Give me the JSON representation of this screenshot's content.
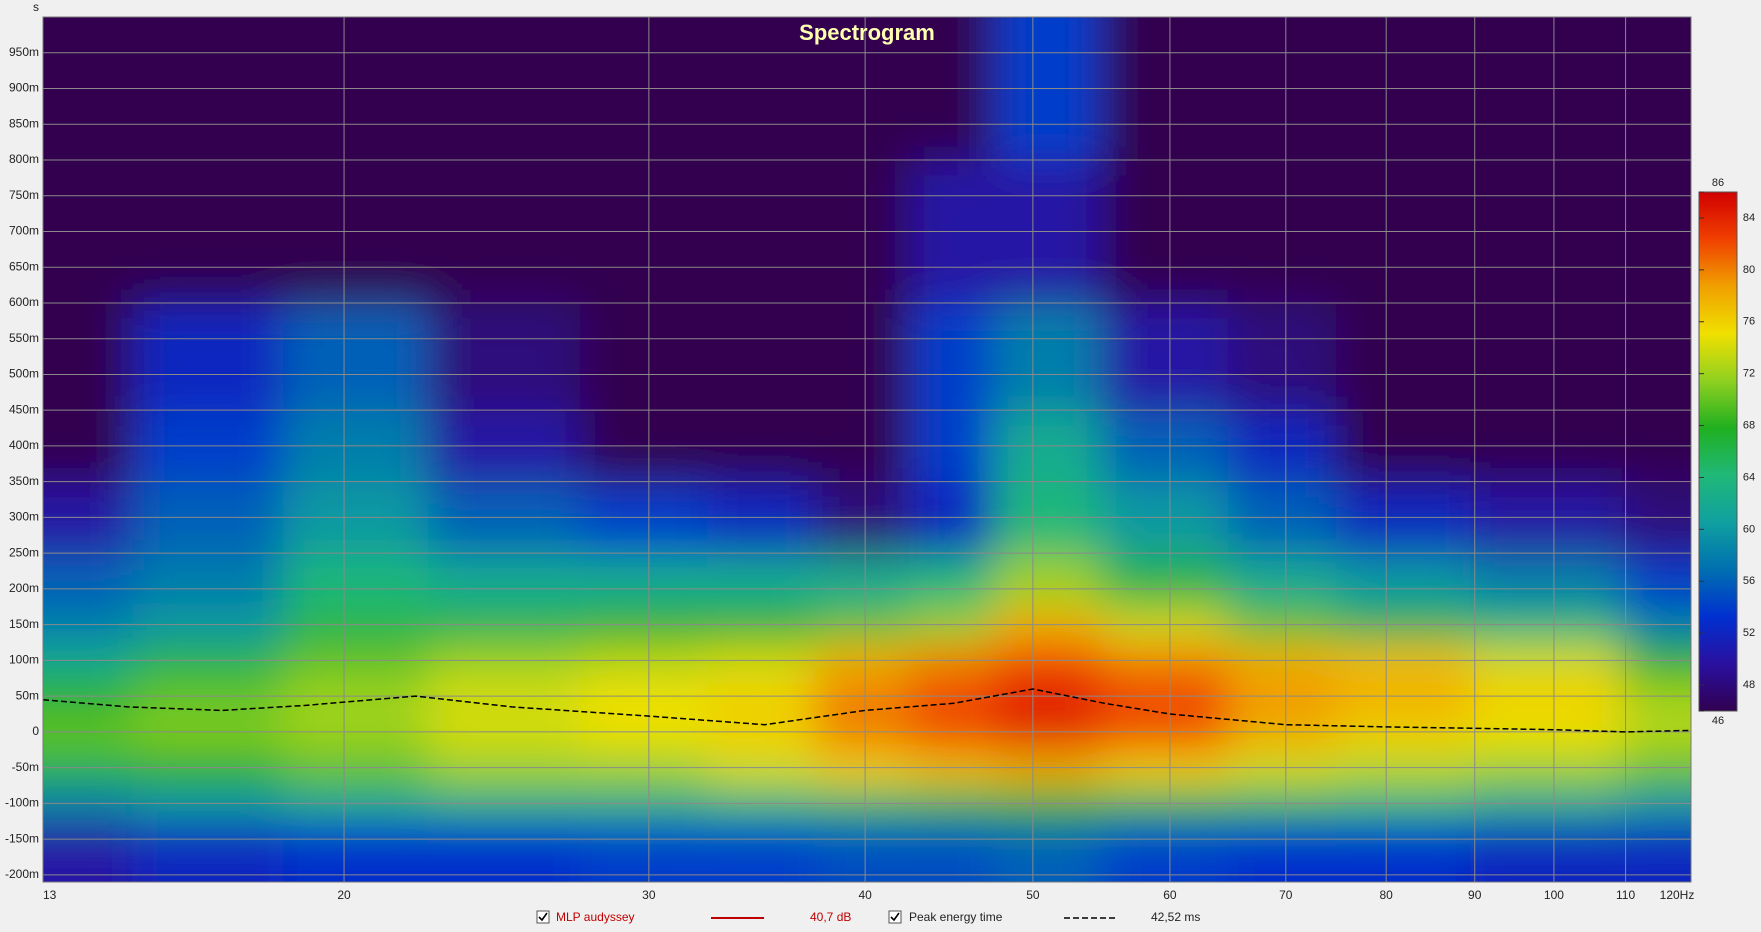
{
  "chart_data": {
    "type": "spectrogram",
    "title": "Spectrogram",
    "y_label": "s",
    "xscale": "log",
    "xlim": [
      13.4,
      120
    ],
    "xticks": [
      {
        "value": 13.4,
        "label": "13"
      },
      20,
      30,
      40,
      50,
      60,
      70,
      80,
      90,
      100,
      110,
      {
        "value": 120,
        "label": "120Hz"
      }
    ],
    "ylim": [
      -0.21,
      1.0
    ],
    "yticks": [
      {
        "value": -0.2,
        "label": "-200m"
      },
      {
        "value": -0.15,
        "label": "-150m"
      },
      {
        "value": -0.1,
        "label": "-100m"
      },
      {
        "value": -0.05,
        "label": "-50m"
      },
      {
        "value": 0,
        "label": "0"
      },
      {
        "value": 0.05,
        "label": "50m"
      },
      {
        "value": 0.1,
        "label": "100m"
      },
      {
        "value": 0.15,
        "label": "150m"
      },
      {
        "value": 0.2,
        "label": "200m"
      },
      {
        "value": 0.25,
        "label": "250m"
      },
      {
        "value": 0.3,
        "label": "300m"
      },
      {
        "value": 0.35,
        "label": "350m"
      },
      {
        "value": 0.4,
        "label": "400m"
      },
      {
        "value": 0.45,
        "label": "450m"
      },
      {
        "value": 0.5,
        "label": "500m"
      },
      {
        "value": 0.55,
        "label": "550m"
      },
      {
        "value": 0.6,
        "label": "600m"
      },
      {
        "value": 0.65,
        "label": "650m"
      },
      {
        "value": 0.7,
        "label": "700m"
      },
      {
        "value": 0.75,
        "label": "750m"
      },
      {
        "value": 0.8,
        "label": "800m"
      },
      {
        "value": 0.85,
        "label": "850m"
      },
      {
        "value": 0.9,
        "label": "900m"
      },
      {
        "value": 0.95,
        "label": "950m"
      }
    ],
    "grid": true,
    "z_x": [
      13.4,
      17,
      20,
      25,
      30,
      35,
      40,
      45,
      50,
      60,
      70,
      80,
      100,
      120
    ],
    "z_y": [
      -0.15,
      -0.1,
      -0.05,
      0,
      0.05,
      0.1,
      0.15,
      0.2,
      0.3,
      0.4,
      0.5,
      0.7,
      0.9
    ],
    "z": [
      [
        50,
        52,
        53,
        53,
        54,
        54,
        55,
        55,
        56,
        54,
        53,
        53,
        52,
        52
      ],
      [
        58,
        60,
        62,
        63,
        63,
        64,
        65,
        66,
        68,
        66,
        65,
        64,
        62,
        60
      ],
      [
        66,
        68,
        70,
        72,
        72,
        74,
        76,
        77,
        78,
        76,
        74,
        73,
        72,
        70
      ],
      [
        70,
        71,
        72,
        74,
        75,
        76,
        80,
        82,
        84,
        82,
        78,
        76,
        75,
        73
      ],
      [
        68,
        70,
        72,
        74,
        75,
        76,
        80,
        82,
        84,
        82,
        79,
        78,
        76,
        72
      ],
      [
        62,
        66,
        70,
        72,
        73,
        74,
        78,
        80,
        82,
        80,
        78,
        77,
        74,
        68
      ],
      [
        58,
        60,
        66,
        66,
        68,
        68,
        70,
        72,
        78,
        74,
        70,
        66,
        64,
        58
      ],
      [
        56,
        58,
        64,
        62,
        62,
        62,
        62,
        64,
        72,
        66,
        62,
        60,
        58,
        54
      ],
      [
        50,
        56,
        60,
        56,
        54,
        52,
        48,
        52,
        64,
        60,
        56,
        52,
        50,
        48
      ],
      [
        46,
        54,
        58,
        50,
        46,
        46,
        46,
        54,
        62,
        56,
        52,
        46,
        46,
        46
      ],
      [
        46,
        52,
        56,
        48,
        46,
        46,
        46,
        54,
        58,
        50,
        48,
        46,
        46,
        46
      ],
      [
        46,
        46,
        46,
        46,
        46,
        46,
        46,
        50,
        50,
        46,
        46,
        46,
        46,
        46
      ],
      [
        46,
        46,
        46,
        46,
        46,
        46,
        46,
        46,
        54,
        46,
        46,
        46,
        46,
        46
      ]
    ],
    "clim": [
      46,
      86
    ],
    "cticks": [
      46,
      48,
      52,
      56,
      60,
      64,
      68,
      72,
      76,
      80,
      84,
      86
    ],
    "colormap": [
      "#300050",
      "#2a10a0",
      "#0030d0",
      "#0070b0",
      "#10a0a0",
      "#20b878",
      "#20b020",
      "#90d020",
      "#f0e000",
      "#f0a000",
      "#f04000",
      "#d00000"
    ],
    "series": [
      {
        "name": "Peak energy time",
        "color": "#000000",
        "dash": true,
        "legend_value": "42,52 ms",
        "x": [
          13.4,
          15,
          17,
          19,
          22,
          25,
          30,
          35,
          40,
          45,
          50,
          55,
          60,
          70,
          80,
          90,
          100,
          110,
          120
        ],
        "values": [
          0.045,
          0.035,
          0.03,
          0.037,
          0.05,
          0.035,
          0.022,
          0.01,
          0.03,
          0.04,
          0.06,
          0.04,
          0.025,
          0.01,
          0.007,
          0.005,
          0.003,
          0.0,
          0.002
        ]
      }
    ],
    "measurement": {
      "name": "MLP audyssey",
      "color": "#c00000",
      "level": "40,7 dB"
    }
  }
}
